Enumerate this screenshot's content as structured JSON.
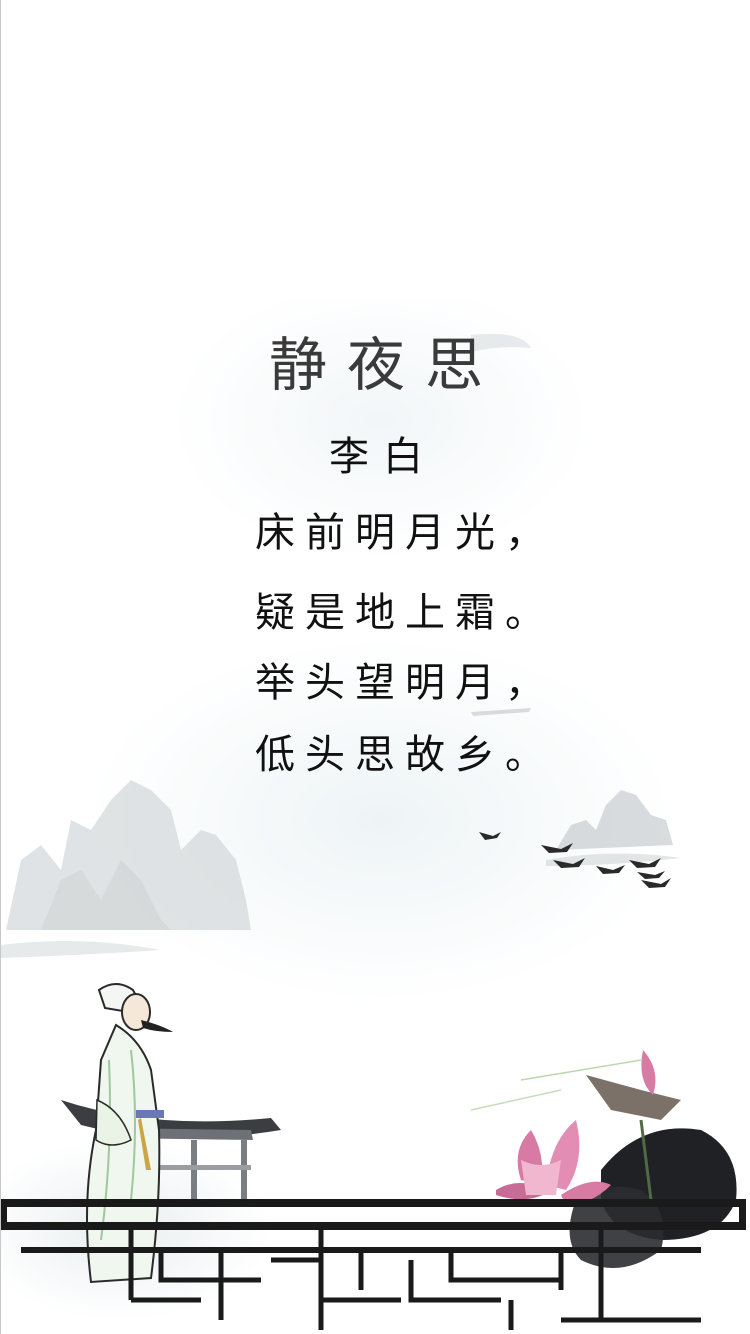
{
  "poem": {
    "title": "静夜思",
    "author": "李白",
    "lines": [
      "床前明月光，",
      "疑是地上霜。",
      "举头望明月，",
      "低头思故乡。"
    ]
  },
  "illustration": {
    "elements": [
      "ink-mountains",
      "flying-cranes",
      "poet-figure",
      "pavilion-roof",
      "lotus-flowers",
      "lotus-leaf",
      "lattice-railing"
    ],
    "accent_colors": {
      "ink": "#1a1a1a",
      "lotus_pink": "#d77aa4",
      "robe_green": "#b8d8b0"
    }
  }
}
